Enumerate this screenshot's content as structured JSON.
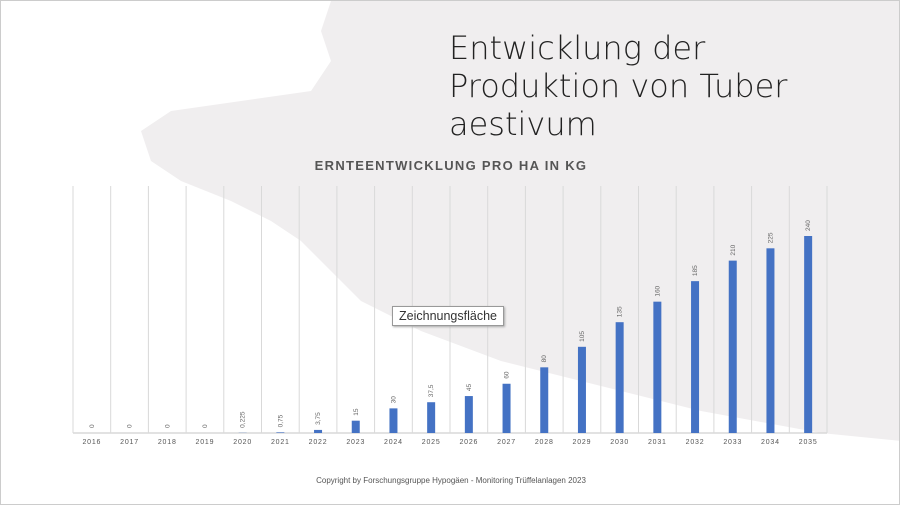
{
  "slide_title": "Entwicklung der Produktion von Tuber aestivum",
  "tooltip": "Zeichnungsfläche",
  "copyright": "Copyright by Forschungsgruppe Hypogäen - Monitoring Trüffelanlagen 2023",
  "colors": {
    "bar": "#4472c4",
    "grid": "#d9d9d9",
    "background_shape": "#f0eeef"
  },
  "chart_data": {
    "type": "bar",
    "title": "ERNTEENTWICKLUNG PRO HA IN KG",
    "xlabel": "",
    "ylabel": "",
    "categories": [
      "2016",
      "2017",
      "2018",
      "2019",
      "2020",
      "2021",
      "2022",
      "2023",
      "2024",
      "2025",
      "2026",
      "2027",
      "2028",
      "2029",
      "2030",
      "2031",
      "2032",
      "2033",
      "2034",
      "2035"
    ],
    "values": [
      0,
      0,
      0,
      0,
      0.225,
      0.75,
      3.75,
      15,
      30,
      37.5,
      45,
      60,
      80,
      105,
      135,
      160,
      185,
      210,
      225,
      240
    ],
    "labels": [
      "0",
      "0",
      "0",
      "0",
      "0,225",
      "0,75",
      "3,75",
      "15",
      "30",
      "37,5",
      "45",
      "60",
      "80",
      "105",
      "135",
      "160",
      "185",
      "210",
      "225",
      "240"
    ],
    "ylim": [
      0,
      300
    ],
    "grid": "vertical"
  }
}
